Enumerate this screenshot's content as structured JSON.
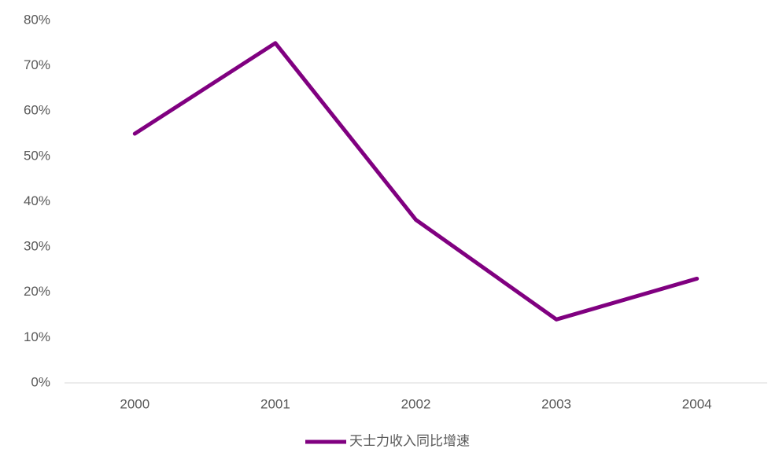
{
  "chart_data": {
    "type": "line",
    "categories": [
      "2000",
      "2001",
      "2002",
      "2003",
      "2004"
    ],
    "series": [
      {
        "name": "天士力收入同比增速",
        "color": "#800080",
        "values": [
          55,
          75,
          36,
          14,
          23
        ]
      }
    ],
    "ylim": [
      0,
      80
    ],
    "yticks": [
      {
        "value": 0,
        "label": "0%"
      },
      {
        "value": 10,
        "label": "10%"
      },
      {
        "value": 20,
        "label": "20%"
      },
      {
        "value": 30,
        "label": "30%"
      },
      {
        "value": 40,
        "label": "40%"
      },
      {
        "value": 50,
        "label": "50%"
      },
      {
        "value": 60,
        "label": "60%"
      },
      {
        "value": 70,
        "label": "70%"
      },
      {
        "value": 80,
        "label": "80%"
      }
    ],
    "grid": false,
    "legend": "bottom"
  }
}
